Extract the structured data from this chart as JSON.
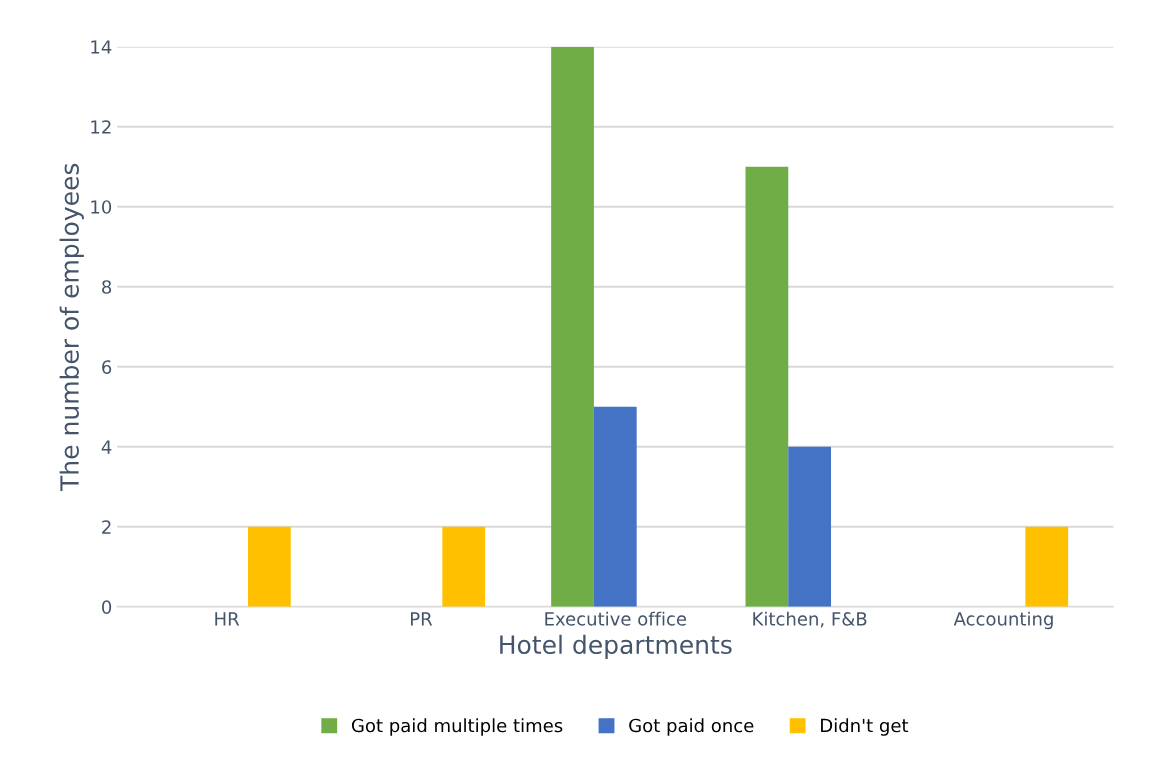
{
  "chart_data": {
    "type": "bar",
    "xlabel": "Hotel departments",
    "ylabel": "The number of employees",
    "categories": [
      "HR",
      "PR",
      "Executive office",
      "Kitchen, F&B",
      "Accounting"
    ],
    "series": [
      {
        "name": "Got paid multiple times",
        "color": "#70ad47",
        "values": [
          0,
          0,
          14,
          11,
          0
        ]
      },
      {
        "name": "Got paid once",
        "color": "#4472c4",
        "values": [
          0,
          0,
          5,
          4,
          0
        ]
      },
      {
        "name": "Didn't get",
        "color": "#ffc000",
        "values": [
          2,
          2,
          0,
          0,
          2
        ]
      }
    ],
    "ylim": [
      0,
      14
    ],
    "yticks": [
      0,
      2,
      4,
      6,
      8,
      10,
      12,
      14
    ],
    "grid": "y",
    "legend": "bottom"
  }
}
